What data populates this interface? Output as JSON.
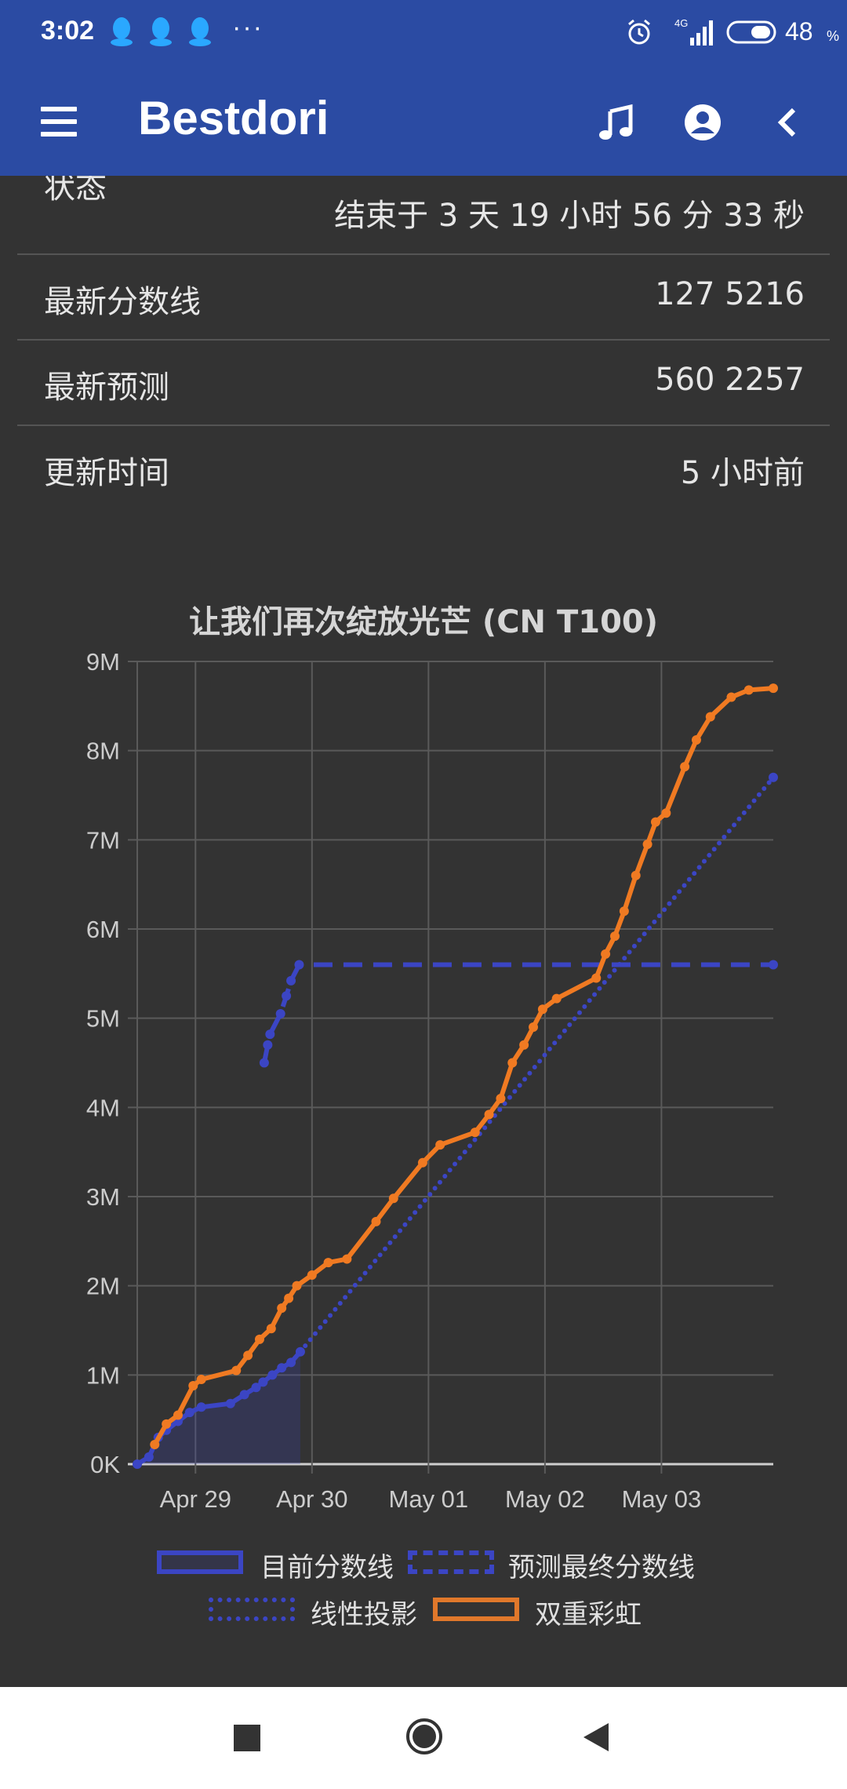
{
  "status_bar": {
    "time": "3:02",
    "dots": "···",
    "network": "4G",
    "battery": "48",
    "battery_unit": "%"
  },
  "app_bar": {
    "title": "Bestdori"
  },
  "info": {
    "status_label": "状态",
    "status_value": "结束于 3 天 19 小时 56 分 33 秒",
    "rows": [
      {
        "label": "最新分数线",
        "value": "127 5216"
      },
      {
        "label": "最新预测",
        "value": "560 2257"
      },
      {
        "label": "更新时间",
        "value": "5 小时前"
      }
    ]
  },
  "chart_data": {
    "type": "line",
    "title": "让我们再次绽放光芒 (CN T100)",
    "xlabel": "",
    "ylabel": "",
    "x_ticks": [
      "Apr 29",
      "Apr 30",
      "May 01",
      "May 02",
      "May 03"
    ],
    "y_ticks": [
      "0K",
      "1M",
      "2M",
      "3M",
      "4M",
      "5M",
      "6M",
      "7M",
      "8M",
      "9M"
    ],
    "x_unit": "days since Apr 28 00:00 (Apr 29 = 1.0)",
    "ylim": [
      0,
      9
    ],
    "y_unit": "M",
    "xlim": [
      0.5,
      5.96
    ],
    "grid": true,
    "legend_position": "bottom",
    "series": [
      {
        "name": "目前分数线",
        "style": "solid-filled",
        "color": "#3b45c4",
        "points": [
          [
            0.5,
            0.0
          ],
          [
            0.6,
            0.08
          ],
          [
            0.68,
            0.3
          ],
          [
            0.75,
            0.38
          ],
          [
            0.85,
            0.48
          ],
          [
            0.95,
            0.58
          ],
          [
            1.05,
            0.64
          ],
          [
            1.3,
            0.68
          ],
          [
            1.42,
            0.78
          ],
          [
            1.52,
            0.86
          ],
          [
            1.58,
            0.92
          ],
          [
            1.66,
            1.0
          ],
          [
            1.74,
            1.08
          ],
          [
            1.82,
            1.14
          ],
          [
            1.9,
            1.26
          ]
        ]
      },
      {
        "name": "预测最终分数线",
        "style": "dashed",
        "color": "#3b45c4",
        "points": [
          [
            1.59,
            4.5
          ],
          [
            1.62,
            4.7
          ],
          [
            1.64,
            4.82
          ],
          [
            1.73,
            5.05
          ],
          [
            1.78,
            5.25
          ],
          [
            1.82,
            5.42
          ],
          [
            1.89,
            5.6
          ],
          [
            5.96,
            5.6
          ]
        ]
      },
      {
        "name": "线性投影",
        "style": "dotted",
        "color": "#3b45c4",
        "points": [
          [
            1.9,
            1.26
          ],
          [
            5.96,
            7.7
          ]
        ]
      },
      {
        "name": "双重彩虹",
        "style": "solid",
        "color": "#f07a22",
        "points": [
          [
            0.65,
            0.22
          ],
          [
            0.75,
            0.45
          ],
          [
            0.85,
            0.55
          ],
          [
            0.98,
            0.88
          ],
          [
            1.05,
            0.95
          ],
          [
            1.35,
            1.05
          ],
          [
            1.45,
            1.22
          ],
          [
            1.55,
            1.4
          ],
          [
            1.65,
            1.52
          ],
          [
            1.74,
            1.75
          ],
          [
            1.8,
            1.86
          ],
          [
            1.87,
            2.0
          ],
          [
            2.0,
            2.12
          ],
          [
            2.14,
            2.26
          ],
          [
            2.3,
            2.3
          ],
          [
            2.55,
            2.72
          ],
          [
            2.7,
            2.98
          ],
          [
            2.95,
            3.38
          ],
          [
            3.1,
            3.58
          ],
          [
            3.4,
            3.72
          ],
          [
            3.52,
            3.92
          ],
          [
            3.62,
            4.1
          ],
          [
            3.72,
            4.5
          ],
          [
            3.82,
            4.7
          ],
          [
            3.9,
            4.9
          ],
          [
            3.98,
            5.1
          ],
          [
            4.1,
            5.22
          ],
          [
            4.44,
            5.45
          ],
          [
            4.52,
            5.72
          ],
          [
            4.6,
            5.92
          ],
          [
            4.68,
            6.2
          ],
          [
            4.78,
            6.6
          ],
          [
            4.88,
            6.95
          ],
          [
            4.95,
            7.2
          ],
          [
            5.04,
            7.3
          ],
          [
            5.2,
            7.82
          ],
          [
            5.3,
            8.12
          ],
          [
            5.42,
            8.38
          ],
          [
            5.6,
            8.6
          ],
          [
            5.75,
            8.68
          ],
          [
            5.96,
            8.7
          ]
        ]
      }
    ]
  },
  "legend": [
    {
      "name": "目前分数线",
      "style": "solid",
      "color": "#3b45c4"
    },
    {
      "name": "预测最终分数线",
      "style": "dashed",
      "color": "#3b45c4"
    },
    {
      "name": "线性投影",
      "style": "dotted",
      "color": "#3b45c4"
    },
    {
      "name": "双重彩虹",
      "style": "solid",
      "color": "#e0782b"
    }
  ],
  "colors": {
    "primary": "#2b4ba3",
    "background": "#333333",
    "grid": "#5a5a5a",
    "blue_series": "#3b45c4",
    "orange_series": "#f07a22"
  }
}
